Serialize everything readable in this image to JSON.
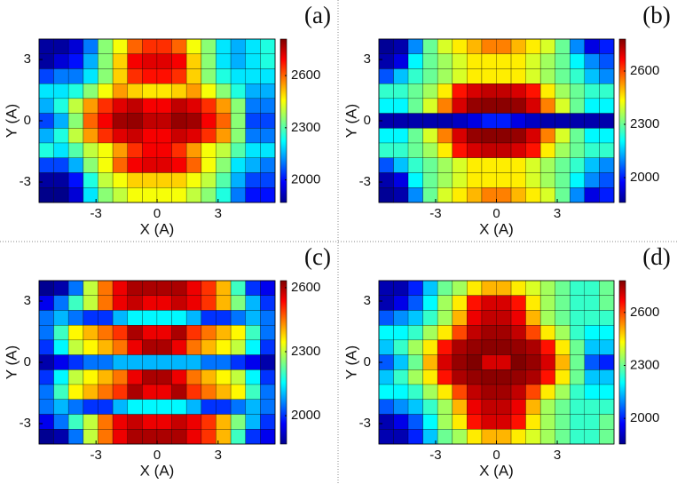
{
  "chart_data": [
    {
      "type": "heatmap",
      "label": "(a)",
      "xlabel": "X (A)",
      "ylabel": "Y (A)",
      "colormap": "jet",
      "grid": true,
      "xlim": [
        -5.8,
        5.8
      ],
      "ylim": [
        -4,
        4
      ],
      "xticks": [
        -3,
        0,
        3
      ],
      "yticks": [
        3,
        0,
        -3
      ],
      "clim": [
        1870,
        2810
      ],
      "cticks": [
        2000,
        2300,
        2600
      ],
      "x": [
        -5.44,
        -4.71,
        -3.99,
        -3.26,
        -2.54,
        -1.81,
        -1.09,
        -0.36,
        0.36,
        1.09,
        1.81,
        2.54,
        3.26,
        3.99,
        4.71,
        5.44
      ],
      "y": [
        3.64,
        2.91,
        2.18,
        1.45,
        0.73,
        0,
        -0.73,
        -1.45,
        -2.18,
        -2.91,
        -3.64
      ],
      "z": [
        [
          1900,
          1900,
          1950,
          2100,
          2350,
          2450,
          2600,
          2650,
          2650,
          2600,
          2450,
          2350,
          2200,
          2150,
          2200,
          2250
        ],
        [
          1900,
          1950,
          2000,
          2150,
          2350,
          2500,
          2700,
          2720,
          2720,
          2700,
          2500,
          2350,
          2200,
          2150,
          2200,
          2250
        ],
        [
          2050,
          2100,
          2100,
          2200,
          2350,
          2500,
          2650,
          2680,
          2680,
          2650,
          2500,
          2350,
          2250,
          2200,
          2200,
          2200
        ],
        [
          2200,
          2200,
          2250,
          2350,
          2450,
          2550,
          2500,
          2480,
          2480,
          2500,
          2550,
          2450,
          2350,
          2250,
          2150,
          2150
        ],
        [
          2150,
          2250,
          2400,
          2550,
          2650,
          2720,
          2750,
          2700,
          2700,
          2750,
          2720,
          2650,
          2550,
          2350,
          2100,
          2100
        ],
        [
          2050,
          2150,
          2350,
          2600,
          2700,
          2780,
          2790,
          2750,
          2750,
          2790,
          2780,
          2700,
          2600,
          2350,
          2050,
          2050
        ],
        [
          2150,
          2250,
          2400,
          2550,
          2650,
          2720,
          2740,
          2700,
          2700,
          2740,
          2720,
          2650,
          2550,
          2350,
          2100,
          2100
        ],
        [
          2250,
          2200,
          2300,
          2400,
          2450,
          2550,
          2650,
          2700,
          2700,
          2650,
          2550,
          2450,
          2400,
          2300,
          2200,
          2200
        ],
        [
          2050,
          2050,
          2150,
          2350,
          2450,
          2600,
          2700,
          2720,
          2720,
          2700,
          2600,
          2450,
          2350,
          2200,
          2150,
          2100
        ],
        [
          1900,
          1900,
          2000,
          2250,
          2400,
          2450,
          2500,
          2500,
          2500,
          2500,
          2450,
          2400,
          2300,
          2150,
          2050,
          2050
        ],
        [
          1880,
          1880,
          1950,
          2200,
          2350,
          2400,
          2450,
          2450,
          2450,
          2450,
          2400,
          2350,
          2250,
          2100,
          2000,
          2000
        ]
      ]
    },
    {
      "type": "heatmap",
      "label": "(b)",
      "xlabel": "X (A)",
      "ylabel": "Y (A)",
      "colormap": "jet",
      "grid": true,
      "xlim": [
        -5.8,
        5.8
      ],
      "ylim": [
        -4,
        4
      ],
      "xticks": [
        -3,
        0,
        3
      ],
      "yticks": [
        3,
        0,
        -3
      ],
      "clim": [
        1860,
        2780
      ],
      "cticks": [
        2000,
        2300,
        2600
      ],
      "x": [
        -5.44,
        -4.71,
        -3.99,
        -3.26,
        -2.54,
        -1.81,
        -1.09,
        -0.36,
        0.36,
        1.09,
        1.81,
        2.54,
        3.26,
        3.99,
        4.71,
        5.44
      ],
      "y": [
        3.64,
        2.91,
        2.18,
        1.45,
        0.73,
        0,
        -0.73,
        -1.45,
        -2.18,
        -2.91,
        -3.64
      ],
      "z": [
        [
          1880,
          1900,
          2100,
          2300,
          2400,
          2450,
          2500,
          2550,
          2550,
          2500,
          2450,
          2400,
          2300,
          2100,
          1950,
          2000
        ],
        [
          1900,
          1950,
          2200,
          2300,
          2350,
          2400,
          2450,
          2450,
          2450,
          2450,
          2400,
          2350,
          2300,
          2200,
          2100,
          2050
        ],
        [
          2050,
          2150,
          2250,
          2300,
          2350,
          2400,
          2450,
          2450,
          2450,
          2450,
          2400,
          2350,
          2300,
          2250,
          2150,
          2100
        ],
        [
          2250,
          2250,
          2300,
          2350,
          2450,
          2650,
          2700,
          2720,
          2720,
          2700,
          2650,
          2450,
          2350,
          2300,
          2250,
          2250
        ],
        [
          2200,
          2200,
          2300,
          2400,
          2550,
          2700,
          2760,
          2770,
          2770,
          2760,
          2700,
          2550,
          2400,
          2300,
          2200,
          2200
        ],
        [
          1900,
          1900,
          1900,
          1900,
          1900,
          1920,
          1950,
          2000,
          2000,
          1950,
          1920,
          1900,
          1900,
          1900,
          1900,
          1900
        ],
        [
          2200,
          2200,
          2300,
          2400,
          2550,
          2700,
          2760,
          2770,
          2770,
          2760,
          2700,
          2550,
          2400,
          2300,
          2200,
          2200
        ],
        [
          2250,
          2250,
          2300,
          2350,
          2450,
          2650,
          2700,
          2720,
          2720,
          2700,
          2650,
          2450,
          2350,
          2300,
          2250,
          2250
        ],
        [
          2050,
          2150,
          2250,
          2300,
          2350,
          2400,
          2450,
          2450,
          2450,
          2450,
          2400,
          2350,
          2300,
          2250,
          2150,
          2100
        ],
        [
          1900,
          1950,
          2200,
          2300,
          2350,
          2400,
          2450,
          2450,
          2450,
          2450,
          2400,
          2350,
          2300,
          2200,
          2100,
          2050
        ],
        [
          1880,
          1900,
          2100,
          2300,
          2400,
          2450,
          2500,
          2550,
          2550,
          2500,
          2450,
          2400,
          2300,
          2100,
          1950,
          2000
        ]
      ]
    },
    {
      "type": "heatmap",
      "label": "(c)",
      "xlabel": "X (A)",
      "ylabel": "Y (A)",
      "colormap": "jet",
      "grid": true,
      "xlim": [
        -5.8,
        5.8
      ],
      "ylim": [
        -4,
        4
      ],
      "xticks": [
        -3,
        0,
        3
      ],
      "yticks": [
        3,
        0,
        -3
      ],
      "clim": [
        1867,
        2633
      ],
      "cticks": [
        2000,
        2300,
        2600
      ],
      "x": [
        -5.44,
        -4.71,
        -3.99,
        -3.26,
        -2.54,
        -1.81,
        -1.09,
        -0.36,
        0.36,
        1.09,
        1.81,
        2.54,
        3.26,
        3.99,
        4.71,
        5.44
      ],
      "y": [
        3.64,
        2.91,
        2.18,
        1.45,
        0.73,
        0,
        -0.73,
        -1.45,
        -2.18,
        -2.91,
        -3.64
      ],
      "z": [
        [
          1880,
          1900,
          2050,
          2300,
          2450,
          2550,
          2600,
          2600,
          2600,
          2600,
          2550,
          2500,
          2400,
          2200,
          2000,
          1950
        ],
        [
          1950,
          2050,
          2200,
          2300,
          2450,
          2550,
          2580,
          2550,
          2550,
          2580,
          2550,
          2500,
          2400,
          2250,
          2100,
          2000
        ],
        [
          2050,
          2100,
          2050,
          2000,
          2000,
          2100,
          2150,
          2150,
          2150,
          2150,
          2100,
          2000,
          2000,
          2050,
          2100,
          2050
        ],
        [
          2050,
          2200,
          2350,
          2400,
          2450,
          2500,
          2600,
          2550,
          2550,
          2600,
          2500,
          2450,
          2400,
          2350,
          2200,
          2050
        ],
        [
          2000,
          2150,
          2300,
          2350,
          2400,
          2450,
          2550,
          2600,
          2600,
          2550,
          2450,
          2400,
          2350,
          2300,
          2150,
          2000
        ],
        [
          1900,
          1950,
          2000,
          2050,
          2050,
          2100,
          2100,
          2100,
          2100,
          2100,
          2100,
          2050,
          2050,
          2000,
          1950,
          1900
        ],
        [
          2000,
          2150,
          2300,
          2350,
          2400,
          2450,
          2550,
          2600,
          2600,
          2550,
          2450,
          2400,
          2350,
          2300,
          2150,
          2000
        ],
        [
          2050,
          2200,
          2350,
          2400,
          2450,
          2500,
          2600,
          2550,
          2550,
          2600,
          2500,
          2450,
          2400,
          2350,
          2200,
          2050
        ],
        [
          2050,
          2100,
          2050,
          2000,
          2000,
          2100,
          2150,
          2150,
          2150,
          2150,
          2100,
          2000,
          2000,
          2050,
          2100,
          2050
        ],
        [
          1950,
          2050,
          2200,
          2300,
          2450,
          2550,
          2580,
          2550,
          2550,
          2580,
          2550,
          2500,
          2400,
          2250,
          2100,
          2000
        ],
        [
          1880,
          1900,
          2050,
          2300,
          2450,
          2550,
          2600,
          2600,
          2600,
          2600,
          2550,
          2500,
          2400,
          2200,
          2000,
          1950
        ]
      ]
    },
    {
      "type": "heatmap",
      "label": "(d)",
      "xlabel": "X (A)",
      "ylabel": "Y (A)",
      "colormap": "jet",
      "grid": true,
      "xlim": [
        -5.8,
        5.8
      ],
      "ylim": [
        -4,
        4
      ],
      "xticks": [
        -3,
        0,
        3
      ],
      "yticks": [
        3,
        0,
        -3
      ],
      "clim": [
        1855,
        2780
      ],
      "cticks": [
        2000,
        2300,
        2600
      ],
      "x": [
        -5.44,
        -4.71,
        -3.99,
        -3.26,
        -2.54,
        -1.81,
        -1.09,
        -0.36,
        0.36,
        1.09,
        1.81,
        2.54,
        3.26,
        3.99,
        4.71,
        5.44
      ],
      "y": [
        3.64,
        2.91,
        2.18,
        1.45,
        0.73,
        0,
        -0.73,
        -1.45,
        -2.18,
        -2.91,
        -3.64
      ],
      "z": [
        [
          1900,
          1900,
          2000,
          2150,
          2300,
          2350,
          2450,
          2500,
          2500,
          2450,
          2400,
          2350,
          2300,
          2250,
          2250,
          2300
        ],
        [
          1900,
          1950,
          2050,
          2200,
          2350,
          2450,
          2650,
          2700,
          2700,
          2650,
          2450,
          2350,
          2300,
          2250,
          2250,
          2300
        ],
        [
          2050,
          2100,
          2150,
          2250,
          2350,
          2500,
          2680,
          2720,
          2720,
          2680,
          2500,
          2350,
          2300,
          2250,
          2250,
          2250
        ],
        [
          2200,
          2200,
          2250,
          2350,
          2450,
          2600,
          2720,
          2750,
          2750,
          2720,
          2600,
          2450,
          2350,
          2250,
          2200,
          2200
        ],
        [
          2150,
          2250,
          2350,
          2450,
          2650,
          2740,
          2760,
          2770,
          2770,
          2760,
          2740,
          2650,
          2450,
          2300,
          2150,
          2150
        ],
        [
          2050,
          2150,
          2300,
          2500,
          2700,
          2760,
          2780,
          2700,
          2700,
          2780,
          2760,
          2700,
          2500,
          2300,
          2050,
          2000
        ],
        [
          2150,
          2250,
          2350,
          2450,
          2650,
          2740,
          2760,
          2770,
          2770,
          2760,
          2740,
          2650,
          2450,
          2300,
          2150,
          2150
        ],
        [
          2200,
          2200,
          2250,
          2350,
          2450,
          2600,
          2720,
          2750,
          2750,
          2720,
          2600,
          2450,
          2350,
          2250,
          2200,
          2200
        ],
        [
          2050,
          2100,
          2150,
          2250,
          2350,
          2500,
          2680,
          2720,
          2720,
          2680,
          2500,
          2350,
          2300,
          2250,
          2250,
          2250
        ],
        [
          1900,
          1950,
          2050,
          2200,
          2350,
          2450,
          2650,
          2700,
          2700,
          2650,
          2450,
          2350,
          2300,
          2250,
          2250,
          2300
        ],
        [
          1900,
          1900,
          2000,
          2150,
          2300,
          2350,
          2450,
          2500,
          2500,
          2450,
          2400,
          2350,
          2300,
          2250,
          2250,
          2300
        ]
      ]
    }
  ]
}
